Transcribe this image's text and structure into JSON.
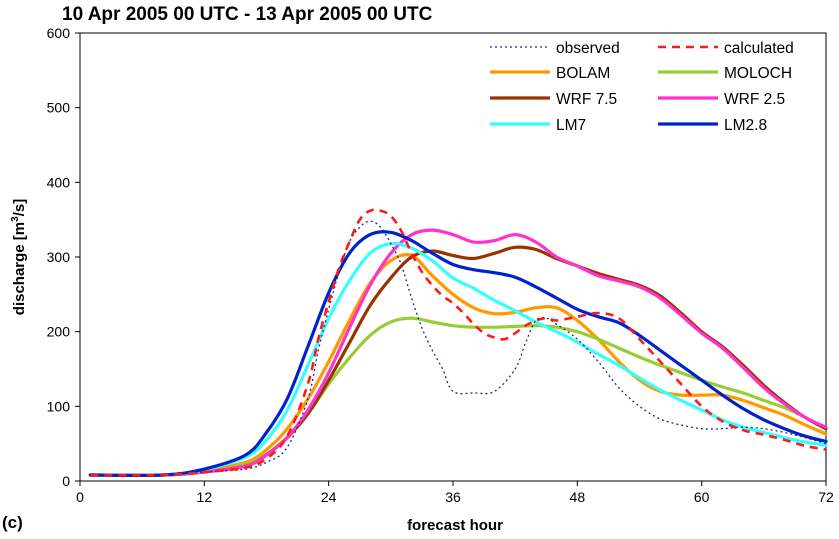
{
  "chart_data": {
    "type": "line",
    "title": "10 Apr 2005 00 UTC - 13 Apr 2005 00 UTC",
    "panel_label": "(c)",
    "xlabel": "forecast hour",
    "ylabel": "discharge [m3/s]",
    "ylabel_base": "discharge [m",
    "ylabel_sup": "3",
    "ylabel_tail": "/s]",
    "xlim": [
      0,
      72
    ],
    "ylim": [
      0,
      600
    ],
    "xticks": [
      "0",
      "12",
      "24",
      "36",
      "48",
      "60",
      "72"
    ],
    "yticks": [
      "0",
      "100",
      "200",
      "300",
      "400",
      "500",
      "600"
    ],
    "grid": false,
    "legend_position": "top-right",
    "series": [
      {
        "name": "observed",
        "color": "#1f2a8a",
        "style": "dotted",
        "width": 1.3,
        "x": [
          1,
          8,
          12,
          16,
          18,
          20,
          22,
          23,
          24,
          25,
          26,
          27,
          28,
          29,
          30,
          31,
          32,
          33,
          34,
          35,
          36,
          38,
          40,
          42,
          43,
          44,
          45,
          46,
          48,
          50,
          52,
          54,
          56,
          58,
          60,
          62,
          64,
          66,
          68,
          70,
          72
        ],
        "y": [
          8,
          8,
          12,
          16,
          25,
          45,
          110,
          175,
          230,
          280,
          320,
          340,
          348,
          340,
          318,
          290,
          245,
          205,
          175,
          150,
          120,
          118,
          120,
          150,
          185,
          215,
          218,
          210,
          190,
          160,
          125,
          100,
          83,
          75,
          70,
          70,
          72,
          70,
          65,
          58,
          50
        ]
      },
      {
        "name": "calculated",
        "color": "#ff1a1a",
        "style": "dashed",
        "width": 2.6,
        "x": [
          1,
          8,
          12,
          16,
          18,
          20,
          22,
          23,
          24,
          25,
          26,
          27,
          28,
          29,
          30,
          31,
          32,
          33,
          34,
          35,
          36,
          37,
          38,
          39,
          40,
          41,
          42,
          43,
          44,
          45,
          46,
          48,
          50,
          52,
          54,
          56,
          58,
          60,
          62,
          64,
          66,
          68,
          70,
          72
        ],
        "y": [
          8,
          8,
          12,
          18,
          30,
          60,
          130,
          190,
          240,
          285,
          320,
          350,
          362,
          362,
          355,
          335,
          305,
          280,
          262,
          248,
          238,
          225,
          210,
          198,
          192,
          190,
          198,
          208,
          215,
          218,
          215,
          220,
          225,
          218,
          190,
          160,
          130,
          100,
          80,
          68,
          62,
          55,
          47,
          42
        ]
      },
      {
        "name": "BOLAM",
        "color": "#ff9900",
        "style": "solid",
        "width": 3.2,
        "x": [
          1,
          8,
          12,
          16,
          18,
          20,
          22,
          24,
          26,
          28,
          30,
          32,
          34,
          36,
          38,
          40,
          42,
          44,
          46,
          48,
          50,
          52,
          54,
          56,
          58,
          60,
          62,
          64,
          66,
          68,
          70,
          72
        ],
        "y": [
          8,
          8,
          14,
          25,
          42,
          70,
          110,
          160,
          215,
          265,
          295,
          302,
          275,
          250,
          232,
          224,
          226,
          232,
          232,
          215,
          190,
          160,
          135,
          120,
          115,
          115,
          115,
          108,
          98,
          88,
          75,
          63
        ]
      },
      {
        "name": "MOLOCH",
        "color": "#99cc33",
        "style": "solid",
        "width": 3.2,
        "x": [
          1,
          8,
          12,
          16,
          18,
          20,
          22,
          24,
          26,
          28,
          30,
          32,
          34,
          36,
          38,
          40,
          42,
          44,
          46,
          48,
          50,
          52,
          54,
          56,
          58,
          60,
          62,
          64,
          66,
          68,
          70,
          72
        ],
        "y": [
          8,
          8,
          12,
          22,
          36,
          58,
          90,
          130,
          165,
          195,
          213,
          218,
          213,
          208,
          206,
          206,
          207,
          208,
          206,
          200,
          190,
          178,
          166,
          155,
          145,
          135,
          126,
          118,
          108,
          98,
          85,
          70
        ]
      },
      {
        "name": "WRF 7.5",
        "color": "#993300",
        "style": "solid",
        "width": 3.2,
        "x": [
          1,
          8,
          12,
          16,
          18,
          20,
          22,
          24,
          26,
          28,
          30,
          32,
          34,
          36,
          38,
          40,
          42,
          44,
          46,
          48,
          50,
          52,
          54,
          56,
          58,
          60,
          62,
          64,
          66,
          68,
          70,
          72
        ],
        "y": [
          8,
          8,
          12,
          20,
          35,
          58,
          90,
          135,
          185,
          235,
          272,
          300,
          308,
          302,
          298,
          305,
          313,
          310,
          298,
          288,
          278,
          270,
          262,
          248,
          225,
          200,
          180,
          155,
          128,
          105,
          85,
          70
        ]
      },
      {
        "name": "WRF 2.5",
        "color": "#ff33cc",
        "style": "solid",
        "width": 3.2,
        "x": [
          1,
          8,
          12,
          16,
          18,
          20,
          22,
          24,
          26,
          28,
          30,
          32,
          34,
          36,
          38,
          40,
          42,
          44,
          46,
          48,
          50,
          52,
          54,
          56,
          58,
          60,
          62,
          64,
          66,
          68,
          70,
          72
        ],
        "y": [
          8,
          8,
          12,
          20,
          35,
          58,
          95,
          145,
          205,
          262,
          305,
          330,
          336,
          330,
          320,
          322,
          330,
          320,
          300,
          288,
          275,
          268,
          260,
          245,
          222,
          198,
          178,
          152,
          125,
          103,
          85,
          72
        ]
      },
      {
        "name": "LM7",
        "color": "#33ffff",
        "style": "solid",
        "width": 3.2,
        "x": [
          1,
          8,
          12,
          16,
          18,
          20,
          22,
          24,
          26,
          28,
          30,
          32,
          34,
          36,
          38,
          40,
          42,
          44,
          46,
          48,
          50,
          52,
          54,
          56,
          58,
          60,
          62,
          64,
          66,
          68,
          70,
          72
        ],
        "y": [
          8,
          8,
          15,
          32,
          55,
          95,
          155,
          218,
          268,
          305,
          318,
          312,
          295,
          272,
          258,
          242,
          228,
          213,
          200,
          186,
          170,
          155,
          138,
          122,
          108,
          95,
          82,
          72,
          65,
          58,
          52,
          48
        ]
      },
      {
        "name": "LM2.8",
        "color": "#0022cc",
        "style": "solid",
        "width": 3.2,
        "x": [
          1,
          8,
          12,
          16,
          18,
          20,
          22,
          24,
          26,
          28,
          30,
          32,
          34,
          36,
          38,
          40,
          42,
          44,
          46,
          48,
          50,
          52,
          54,
          56,
          58,
          60,
          62,
          64,
          66,
          68,
          70,
          72
        ],
        "y": [
          8,
          8,
          16,
          35,
          65,
          110,
          180,
          252,
          305,
          330,
          333,
          322,
          305,
          290,
          283,
          279,
          273,
          260,
          245,
          230,
          220,
          212,
          195,
          175,
          155,
          135,
          115,
          97,
          82,
          70,
          60,
          53
        ]
      }
    ]
  }
}
